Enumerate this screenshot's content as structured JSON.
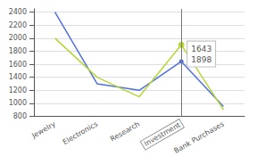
{
  "chart_data": {
    "type": "line",
    "categories": [
      "Jewelry",
      "Electronics",
      "Research",
      "Investment",
      "Bank Purchases"
    ],
    "series": [
      {
        "values": [
          2400,
          1300,
          1200,
          1643,
          950
        ]
      },
      {
        "values": [
          2000,
          1400,
          1100,
          1898,
          900
        ]
      }
    ],
    "ylim": [
      800,
      2450
    ],
    "yticks": [
      800,
      1000,
      1200,
      1400,
      1600,
      1800,
      2000,
      2200,
      2400
    ],
    "grid": true,
    "annotations": [
      {
        "category": "Investment",
        "text": [
          "1643",
          "1898"
        ]
      }
    ]
  }
}
